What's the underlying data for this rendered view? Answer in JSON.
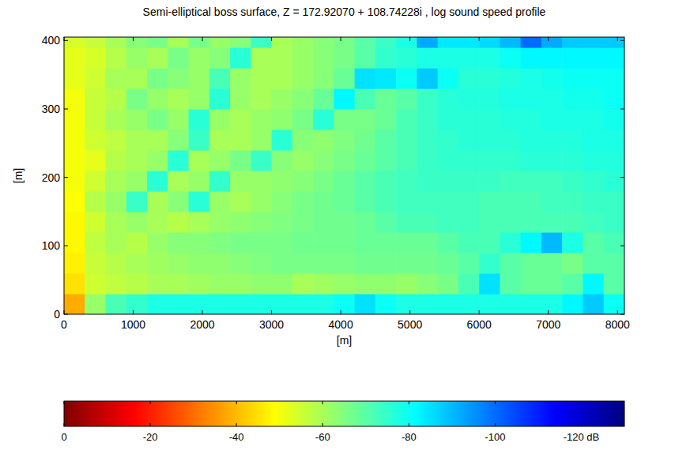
{
  "chart_data": {
    "type": "heatmap",
    "title": "Semi-elliptical boss surface, Z = 172.92070 + 108.74228i , log sound speed profile",
    "xlabel": "[m]",
    "ylabel": "[m]",
    "xlim": [
      0,
      8100
    ],
    "ylim": [
      0,
      405
    ],
    "xticks": [
      0,
      1000,
      2000,
      3000,
      4000,
      5000,
      6000,
      7000,
      8000
    ],
    "yticks": [
      0,
      100,
      200,
      300,
      400
    ],
    "x": [
      150,
      450,
      750,
      1050,
      1350,
      1650,
      1950,
      2250,
      2550,
      2850,
      3150,
      3450,
      3750,
      4050,
      4350,
      4650,
      4950,
      5250,
      5550,
      5850,
      6150,
      6450,
      6750,
      7050,
      7350,
      7650,
      7950
    ],
    "y": [
      15,
      45,
      75,
      105,
      135,
      165,
      195,
      225,
      255,
      285,
      315,
      345,
      375,
      405
    ],
    "cells": [
      [
        -38,
        -62,
        -72,
        -75,
        -78,
        -78,
        -78,
        -78,
        -78,
        -78,
        -78,
        -78,
        -78,
        -80,
        -85,
        -80,
        -78,
        -78,
        -78,
        -78,
        -78,
        -78,
        -78,
        -78,
        -82,
        -88,
        -80
      ],
      [
        -45,
        -55,
        -57,
        -58,
        -60,
        -60,
        -61,
        -62,
        -62,
        -63,
        -63,
        -60,
        -61,
        -62,
        -63,
        -63,
        -62,
        -64,
        -66,
        -72,
        -85,
        -70,
        -68,
        -68,
        -70,
        -82,
        -70
      ],
      [
        -47,
        -56,
        -58,
        -60,
        -61,
        -62,
        -63,
        -63,
        -64,
        -65,
        -66,
        -66,
        -66,
        -66,
        -67,
        -67,
        -67,
        -67,
        -68,
        -70,
        -75,
        -70,
        -68,
        -68,
        -66,
        -70,
        -70
      ],
      [
        -48,
        -57,
        -60,
        -58,
        -62,
        -64,
        -64,
        -65,
        -66,
        -66,
        -66,
        -67,
        -67,
        -67,
        -68,
        -68,
        -68,
        -68,
        -70,
        -72,
        -72,
        -76,
        -82,
        -90,
        -78,
        -70,
        -72
      ],
      [
        -48,
        -55,
        -60,
        -62,
        -60,
        -58,
        -60,
        -62,
        -63,
        -64,
        -65,
        -66,
        -67,
        -67,
        -68,
        -70,
        -72,
        -72,
        -73,
        -73,
        -72,
        -72,
        -72,
        -72,
        -72,
        -73,
        -74
      ],
      [
        -49,
        -58,
        -62,
        -74,
        -60,
        -64,
        -76,
        -62,
        -60,
        -62,
        -64,
        -66,
        -67,
        -68,
        -70,
        -72,
        -73,
        -73,
        -73,
        -73,
        -72,
        -72,
        -72,
        -73,
        -73,
        -74,
        -74
      ],
      [
        -50,
        -55,
        -60,
        -62,
        -76,
        -60,
        -62,
        -75,
        -62,
        -62,
        -63,
        -64,
        -66,
        -68,
        -70,
        -72,
        -73,
        -74,
        -74,
        -74,
        -74,
        -73,
        -73,
        -73,
        -74,
        -75,
        -76
      ],
      [
        -50,
        -52,
        -58,
        -60,
        -62,
        -76,
        -60,
        -62,
        -66,
        -74,
        -64,
        -62,
        -64,
        -66,
        -68,
        -70,
        -72,
        -74,
        -75,
        -75,
        -75,
        -75,
        -76,
        -76,
        -76,
        -77,
        -77
      ],
      [
        -50,
        -55,
        -57,
        -60,
        -60,
        -64,
        -74,
        -60,
        -60,
        -62,
        -76,
        -64,
        -63,
        -65,
        -67,
        -70,
        -72,
        -74,
        -75,
        -76,
        -76,
        -76,
        -77,
        -77,
        -77,
        -78,
        -78
      ],
      [
        -50,
        -56,
        -60,
        -62,
        -66,
        -62,
        -76,
        -62,
        -60,
        -62,
        -63,
        -66,
        -76,
        -66,
        -66,
        -68,
        -72,
        -74,
        -76,
        -76,
        -76,
        -77,
        -77,
        -78,
        -78,
        -78,
        -79
      ],
      [
        -50,
        -56,
        -58,
        -66,
        -62,
        -60,
        -62,
        -76,
        -62,
        -60,
        -62,
        -64,
        -68,
        -82,
        -72,
        -68,
        -70,
        -74,
        -76,
        -77,
        -77,
        -78,
        -78,
        -78,
        -79,
        -79,
        -80
      ],
      [
        -52,
        -55,
        -60,
        -60,
        -66,
        -64,
        -62,
        -72,
        -62,
        -60,
        -60,
        -62,
        -64,
        -68,
        -85,
        -84,
        -80,
        -88,
        -80,
        -76,
        -76,
        -77,
        -78,
        -79,
        -80,
        -80,
        -80
      ],
      [
        -52,
        -54,
        -58,
        -62,
        -60,
        -66,
        -62,
        -64,
        -76,
        -60,
        -60,
        -62,
        -64,
        -66,
        -70,
        -75,
        -76,
        -78,
        -78,
        -78,
        -78,
        -80,
        -82,
        -82,
        -82,
        -82,
        -82
      ],
      [
        -54,
        -56,
        -60,
        -64,
        -66,
        -60,
        -66,
        -62,
        -64,
        -74,
        -60,
        -62,
        -64,
        -66,
        -70,
        -74,
        -78,
        -92,
        -84,
        -84,
        -86,
        -90,
        -100,
        -92,
        -88,
        -88,
        -88
      ]
    ],
    "colorbar": {
      "range": [
        0,
        -130
      ],
      "ticks": [
        0,
        -20,
        -40,
        -60,
        -80,
        -100,
        {
          "value": -120,
          "label": "-120 dB"
        }
      ]
    }
  }
}
